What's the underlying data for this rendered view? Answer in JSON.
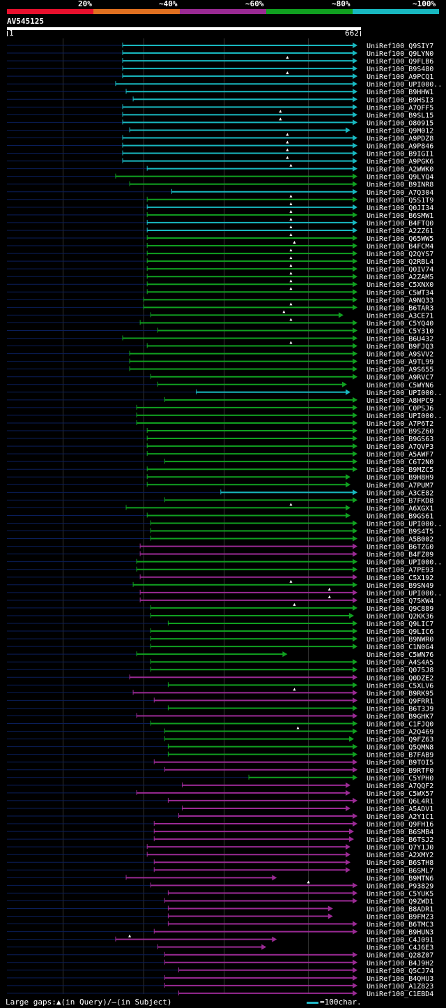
{
  "legend": {
    "labels": [
      "20%",
      "~40%",
      "~60%",
      "~80%",
      "~100%"
    ],
    "colors": [
      "#e8102d",
      "#e07020",
      "#9a2a94",
      "#10a020",
      "#18b8c0"
    ]
  },
  "query_id": "AV545125",
  "query_range": {
    "start": "1",
    "end": "662"
  },
  "footer": {
    "gaps_label": "Large gaps:",
    "query_gap": "(in Query)/",
    "subject_gap": "(in Subject)",
    "scale": "=100char."
  },
  "hits": [
    {
      "id": "UniRef100_Q9SIY7",
      "s": 0.33,
      "e": 1,
      "c": "cyan",
      "a": 1,
      "g": []
    },
    {
      "id": "UniRef100_Q9LYN0",
      "s": 0.33,
      "e": 1,
      "c": "cyan",
      "a": 1,
      "g": []
    },
    {
      "id": "UniRef100_Q9FLB6",
      "s": 0.33,
      "e": 1,
      "c": "cyan",
      "a": 1,
      "g": [
        0.8
      ]
    },
    {
      "id": "UniRef100_B9S480",
      "s": 0.33,
      "e": 1,
      "c": "cyan",
      "a": 1,
      "g": []
    },
    {
      "id": "UniRef100_A9PCQ1",
      "s": 0.33,
      "e": 1,
      "c": "cyan",
      "a": 1,
      "g": [
        0.8
      ]
    },
    {
      "id": "UniRef100_UPI000..",
      "s": 0.31,
      "e": 1,
      "c": "cyan",
      "a": 1,
      "g": []
    },
    {
      "id": "UniRef100_B9HHW1",
      "s": 0.34,
      "e": 1,
      "c": "cyan",
      "a": 1,
      "g": []
    },
    {
      "id": "UniRef100_B9HSI3",
      "s": 0.36,
      "e": 1,
      "c": "cyan",
      "a": 1,
      "g": []
    },
    {
      "id": "UniRef100_A7QFF5",
      "s": 0.33,
      "e": 1,
      "c": "cyan",
      "a": 1,
      "g": []
    },
    {
      "id": "UniRef100_B9SL15",
      "s": 0.33,
      "e": 1,
      "c": "cyan",
      "a": 1,
      "g": [
        0.78
      ]
    },
    {
      "id": "UniRef100_O80915",
      "s": 0.33,
      "e": 1,
      "c": "cyan",
      "a": 1,
      "g": [
        0.78
      ]
    },
    {
      "id": "UniRef100_Q9M012",
      "s": 0.35,
      "e": 0.98,
      "c": "cyan",
      "a": 1,
      "g": []
    },
    {
      "id": "UniRef100_A9PDZ8",
      "s": 0.33,
      "e": 1,
      "c": "cyan",
      "a": 1,
      "g": [
        0.8
      ]
    },
    {
      "id": "UniRef100_A9P846",
      "s": 0.33,
      "e": 1,
      "c": "cyan",
      "a": 1,
      "g": [
        0.8
      ]
    },
    {
      "id": "UniRef100_B9IGI1",
      "s": 0.33,
      "e": 1,
      "c": "cyan",
      "a": 1,
      "g": [
        0.8
      ]
    },
    {
      "id": "UniRef100_A9PGK6",
      "s": 0.33,
      "e": 1,
      "c": "cyan",
      "a": 1,
      "g": [
        0.8
      ]
    },
    {
      "id": "UniRef100_A2WWK0",
      "s": 0.4,
      "e": 1,
      "c": "cyan",
      "a": 1,
      "g": [
        0.81
      ]
    },
    {
      "id": "UniRef100_Q9LYQ4",
      "s": 0.31,
      "e": 1,
      "c": "green",
      "a": 1,
      "g": []
    },
    {
      "id": "UniRef100_B9INR8",
      "s": 0.35,
      "e": 1,
      "c": "green",
      "a": 1,
      "g": []
    },
    {
      "id": "UniRef100_A7Q304",
      "s": 0.47,
      "e": 1,
      "c": "cyan",
      "a": 1,
      "g": []
    },
    {
      "id": "UniRef100_Q5S1T9",
      "s": 0.4,
      "e": 1,
      "c": "green",
      "a": 1,
      "g": [
        0.81
      ]
    },
    {
      "id": "UniRef100_Q0JI34",
      "s": 0.4,
      "e": 1,
      "c": "cyan",
      "a": 1,
      "g": [
        0.81
      ]
    },
    {
      "id": "UniRef100_B6SMW1",
      "s": 0.4,
      "e": 1,
      "c": "green",
      "a": 1,
      "g": [
        0.81
      ]
    },
    {
      "id": "UniRef100_B4FTQ0",
      "s": 0.4,
      "e": 1,
      "c": "cyan",
      "a": 1,
      "g": [
        0.81
      ]
    },
    {
      "id": "UniRef100_A2ZZ61",
      "s": 0.4,
      "e": 1,
      "c": "cyan",
      "a": 1,
      "g": [
        0.81
      ]
    },
    {
      "id": "UniRef100_Q65WW5",
      "s": 0.4,
      "e": 1,
      "c": "green",
      "a": 1,
      "g": [
        0.81
      ]
    },
    {
      "id": "UniRef100_B4FCM4",
      "s": 0.4,
      "e": 1,
      "c": "green",
      "a": 1,
      "g": [
        0.82
      ]
    },
    {
      "id": "UniRef100_Q2QYS7",
      "s": 0.4,
      "e": 1,
      "c": "green",
      "a": 1,
      "g": [
        0.81
      ]
    },
    {
      "id": "UniRef100_Q2RBL4",
      "s": 0.4,
      "e": 1,
      "c": "green",
      "a": 1,
      "g": [
        0.81
      ]
    },
    {
      "id": "UniRef100_Q0IV74",
      "s": 0.4,
      "e": 1,
      "c": "green",
      "a": 1,
      "g": [
        0.81
      ]
    },
    {
      "id": "UniRef100_A2ZAM5",
      "s": 0.4,
      "e": 1,
      "c": "green",
      "a": 1,
      "g": [
        0.81
      ]
    },
    {
      "id": "UniRef100_C5XNX0",
      "s": 0.4,
      "e": 1,
      "c": "green",
      "a": 1,
      "g": [
        0.81
      ]
    },
    {
      "id": "UniRef100_C5WT34",
      "s": 0.4,
      "e": 1,
      "c": "green",
      "a": 1,
      "g": [
        0.81
      ]
    },
    {
      "id": "UniRef100_A9NQ33",
      "s": 0.39,
      "e": 1,
      "c": "green",
      "a": 1,
      "g": []
    },
    {
      "id": "UniRef100_B6TAR3",
      "s": 0.39,
      "e": 1,
      "c": "green",
      "a": 1,
      "g": [
        0.81
      ]
    },
    {
      "id": "UniRef100_A3CE71",
      "s": 0.41,
      "e": 0.96,
      "c": "green",
      "a": 1,
      "g": [
        0.79
      ]
    },
    {
      "id": "UniRef100_C5YQ40",
      "s": 0.38,
      "e": 1,
      "c": "green",
      "a": 1,
      "g": [
        0.81
      ]
    },
    {
      "id": "UniRef100_C5Y310",
      "s": 0.43,
      "e": 1,
      "c": "green",
      "a": 1,
      "g": []
    },
    {
      "id": "UniRef100_B6U432",
      "s": 0.33,
      "e": 1,
      "c": "green",
      "a": 1,
      "g": []
    },
    {
      "id": "UniRef100_B9FJQ3",
      "s": 0.4,
      "e": 1,
      "c": "green",
      "a": 1,
      "g": [
        0.81
      ]
    },
    {
      "id": "UniRef100_A9SVV2",
      "s": 0.35,
      "e": 1,
      "c": "green",
      "a": 1,
      "g": []
    },
    {
      "id": "UniRef100_A9TL99",
      "s": 0.35,
      "e": 1,
      "c": "green",
      "a": 1,
      "g": []
    },
    {
      "id": "UniRef100_A9S655",
      "s": 0.35,
      "e": 1,
      "c": "green",
      "a": 1,
      "g": []
    },
    {
      "id": "UniRef100_A9RVC7",
      "s": 0.41,
      "e": 1,
      "c": "green",
      "a": 1,
      "g": []
    },
    {
      "id": "UniRef100_C5WYN6",
      "s": 0.43,
      "e": 0.97,
      "c": "green",
      "a": 1,
      "g": []
    },
    {
      "id": "UniRef100_UPI000..",
      "s": 0.54,
      "e": 0.98,
      "c": "cyan",
      "a": 1,
      "g": []
    },
    {
      "id": "UniRef100_A8HPC9",
      "s": 0.45,
      "e": 1,
      "c": "green",
      "a": 1,
      "g": []
    },
    {
      "id": "UniRef100_C0PSJ6",
      "s": 0.37,
      "e": 1,
      "c": "green",
      "a": 1,
      "g": []
    },
    {
      "id": "UniRef100_UPI000..",
      "s": 0.37,
      "e": 1,
      "c": "green",
      "a": 1,
      "g": []
    },
    {
      "id": "UniRef100_A7P6T2",
      "s": 0.37,
      "e": 1,
      "c": "green",
      "a": 1,
      "g": []
    },
    {
      "id": "UniRef100_B9SZ60",
      "s": 0.4,
      "e": 1,
      "c": "green",
      "a": 1,
      "g": []
    },
    {
      "id": "UniRef100_B9GS63",
      "s": 0.4,
      "e": 1,
      "c": "green",
      "a": 1,
      "g": []
    },
    {
      "id": "UniRef100_A7QVP3",
      "s": 0.4,
      "e": 1,
      "c": "green",
      "a": 1,
      "g": []
    },
    {
      "id": "UniRef100_A5AWF7",
      "s": 0.4,
      "e": 1,
      "c": "green",
      "a": 1,
      "g": []
    },
    {
      "id": "UniRef100_C6T2N0",
      "s": 0.45,
      "e": 1,
      "c": "green",
      "a": 1,
      "g": []
    },
    {
      "id": "UniRef100_B9MZC5",
      "s": 0.4,
      "e": 1,
      "c": "green",
      "a": 1,
      "g": []
    },
    {
      "id": "UniRef100_B9H8H9",
      "s": 0.4,
      "e": 0.98,
      "c": "green",
      "a": 1,
      "g": []
    },
    {
      "id": "UniRef100_A7PUM7",
      "s": 0.4,
      "e": 0.98,
      "c": "green",
      "a": 1,
      "g": []
    },
    {
      "id": "UniRef100_A3CE82",
      "s": 0.61,
      "e": 1,
      "c": "cyan",
      "a": 1,
      "g": []
    },
    {
      "id": "UniRef100_B7FKD8",
      "s": 0.45,
      "e": 1,
      "c": "green",
      "a": 1,
      "g": []
    },
    {
      "id": "UniRef100_A6XGX1",
      "s": 0.34,
      "e": 0.98,
      "c": "green",
      "a": 1,
      "g": [
        0.81
      ]
    },
    {
      "id": "UniRef100_B9GS61",
      "s": 0.4,
      "e": 0.98,
      "c": "green",
      "a": 1,
      "g": []
    },
    {
      "id": "UniRef100_UPI000..",
      "s": 0.41,
      "e": 1,
      "c": "green",
      "a": 1,
      "g": []
    },
    {
      "id": "UniRef100_B9S4T5",
      "s": 0.41,
      "e": 1,
      "c": "green",
      "a": 1,
      "g": []
    },
    {
      "id": "UniRef100_A5B002",
      "s": 0.41,
      "e": 1,
      "c": "green",
      "a": 1,
      "g": []
    },
    {
      "id": "UniRef100_B6TZG0",
      "s": 0.38,
      "e": 1,
      "c": "magenta",
      "a": 1,
      "g": []
    },
    {
      "id": "UniRef100_B4FZ09",
      "s": 0.38,
      "e": 1,
      "c": "magenta",
      "a": 1,
      "g": []
    },
    {
      "id": "UniRef100_UPI000..",
      "s": 0.37,
      "e": 1,
      "c": "green",
      "a": 1,
      "g": []
    },
    {
      "id": "UniRef100_A7PE93",
      "s": 0.37,
      "e": 1,
      "c": "green",
      "a": 1,
      "g": []
    },
    {
      "id": "UniRef100_C5X192",
      "s": 0.38,
      "e": 1,
      "c": "magenta",
      "a": 1,
      "g": []
    },
    {
      "id": "UniRef100_B9SN49",
      "s": 0.36,
      "e": 1,
      "c": "green",
      "a": 1,
      "g": [
        0.81
      ]
    },
    {
      "id": "UniRef100_UPI000..",
      "s": 0.38,
      "e": 1,
      "c": "magenta",
      "a": 1,
      "g": [
        0.92
      ]
    },
    {
      "id": "UniRef100_Q75KW4",
      "s": 0.38,
      "e": 1,
      "c": "magenta",
      "a": 1,
      "g": [
        0.92
      ]
    },
    {
      "id": "UniRef100_Q9C889",
      "s": 0.41,
      "e": 1,
      "c": "green",
      "a": 1,
      "g": [
        0.82
      ]
    },
    {
      "id": "UniRef100_Q2KK36",
      "s": 0.41,
      "e": 0.99,
      "c": "green",
      "a": 1,
      "g": []
    },
    {
      "id": "UniRef100_Q9LIC7",
      "s": 0.46,
      "e": 1,
      "c": "green",
      "a": 1,
      "g": []
    },
    {
      "id": "UniRef100_Q9LIC6",
      "s": 0.41,
      "e": 1,
      "c": "green",
      "a": 1,
      "g": []
    },
    {
      "id": "UniRef100_B9NWR0",
      "s": 0.41,
      "e": 1,
      "c": "green",
      "a": 1,
      "g": []
    },
    {
      "id": "UniRef100_C1N0G4",
      "s": 0.41,
      "e": 1,
      "c": "green",
      "a": 1,
      "g": []
    },
    {
      "id": "UniRef100_C5WN76",
      "s": 0.37,
      "e": 0.8,
      "c": "green",
      "a": 1,
      "g": []
    },
    {
      "id": "UniRef100_A4S4A5",
      "s": 0.41,
      "e": 1,
      "c": "green",
      "a": 1,
      "g": []
    },
    {
      "id": "UniRef100_Q075J8",
      "s": 0.41,
      "e": 1,
      "c": "green",
      "a": 1,
      "g": []
    },
    {
      "id": "UniRef100_Q0DZE2",
      "s": 0.35,
      "e": 1,
      "c": "magenta",
      "a": 1,
      "g": []
    },
    {
      "id": "UniRef100_C5XLV6",
      "s": 0.46,
      "e": 1,
      "c": "green",
      "a": 1,
      "g": []
    },
    {
      "id": "UniRef100_B9RK95",
      "s": 0.36,
      "e": 1,
      "c": "magenta",
      "a": 1,
      "g": [
        0.82
      ]
    },
    {
      "id": "UniRef100_Q9FRR1",
      "s": 0.42,
      "e": 1,
      "c": "magenta",
      "a": 1,
      "g": []
    },
    {
      "id": "UniRef100_B6T3J9",
      "s": 0.46,
      "e": 1,
      "c": "green",
      "a": 1,
      "g": []
    },
    {
      "id": "UniRef100_B9GHK7",
      "s": 0.37,
      "e": 1,
      "c": "magenta",
      "a": 1,
      "g": []
    },
    {
      "id": "UniRef100_C1FJQ0",
      "s": 0.41,
      "e": 1,
      "c": "green",
      "a": 1,
      "g": []
    },
    {
      "id": "UniRef100_A2Q469",
      "s": 0.45,
      "e": 1,
      "c": "green",
      "a": 1,
      "g": [
        0.83
      ]
    },
    {
      "id": "UniRef100_Q9FZ63",
      "s": 0.45,
      "e": 0.99,
      "c": "green",
      "a": 1,
      "g": []
    },
    {
      "id": "UniRef100_Q5QMN8",
      "s": 0.46,
      "e": 1,
      "c": "green",
      "a": 1,
      "g": []
    },
    {
      "id": "UniRef100_B7FAB9",
      "s": 0.46,
      "e": 1,
      "c": "green",
      "a": 1,
      "g": []
    },
    {
      "id": "UniRef100_B9TOI5",
      "s": 0.42,
      "e": 1,
      "c": "magenta",
      "a": 1,
      "g": []
    },
    {
      "id": "UniRef100_B9RTF0",
      "s": 0.45,
      "e": 1,
      "c": "magenta",
      "a": 1,
      "g": []
    },
    {
      "id": "UniRef100_C5YPH0",
      "s": 0.69,
      "e": 1,
      "c": "green",
      "a": 1,
      "g": []
    },
    {
      "id": "UniRef100_A7QQF2",
      "s": 0.5,
      "e": 0.98,
      "c": "magenta",
      "a": 1,
      "g": []
    },
    {
      "id": "UniRef100_C5WX57",
      "s": 0.37,
      "e": 0.98,
      "c": "magenta",
      "a": 1,
      "g": []
    },
    {
      "id": "UniRef100_Q6L4R1",
      "s": 0.46,
      "e": 1,
      "c": "magenta",
      "a": 1,
      "g": []
    },
    {
      "id": "UniRef100_A5ADV1",
      "s": 0.5,
      "e": 0.98,
      "c": "magenta",
      "a": 1,
      "g": []
    },
    {
      "id": "UniRef100_A2Y1C1",
      "s": 0.49,
      "e": 1,
      "c": "magenta",
      "a": 1,
      "g": []
    },
    {
      "id": "UniRef100_Q9FH16",
      "s": 0.42,
      "e": 1,
      "c": "magenta",
      "a": 1,
      "g": []
    },
    {
      "id": "UniRef100_B6SMB4",
      "s": 0.42,
      "e": 0.99,
      "c": "magenta",
      "a": 1,
      "g": []
    },
    {
      "id": "UniRef100_B6TSJ2",
      "s": 0.42,
      "e": 0.99,
      "c": "magenta",
      "a": 1,
      "g": []
    },
    {
      "id": "UniRef100_Q7Y1J0",
      "s": 0.4,
      "e": 0.98,
      "c": "magenta",
      "a": 1,
      "g": []
    },
    {
      "id": "UniRef100_A2XMY2",
      "s": 0.4,
      "e": 0.98,
      "c": "magenta",
      "a": 1,
      "g": []
    },
    {
      "id": "UniRef100_B6STH8",
      "s": 0.42,
      "e": 0.98,
      "c": "magenta",
      "a": 1,
      "g": []
    },
    {
      "id": "UniRef100_B6SML7",
      "s": 0.42,
      "e": 0.98,
      "c": "magenta",
      "a": 1,
      "g": []
    },
    {
      "id": "UniRef100_B9MTN6",
      "s": 0.34,
      "e": 0.77,
      "c": "magenta",
      "a": 1,
      "g": []
    },
    {
      "id": "UniRef100_P93829",
      "s": 0.41,
      "e": 1,
      "c": "magenta",
      "a": 1,
      "g": [
        0.86
      ]
    },
    {
      "id": "UniRef100_C5YUK5",
      "s": 0.46,
      "e": 1,
      "c": "magenta",
      "a": 1,
      "g": []
    },
    {
      "id": "UniRef100_Q9ZWD1",
      "s": 0.45,
      "e": 1,
      "c": "magenta",
      "a": 1,
      "g": []
    },
    {
      "id": "UniRef100_B8ADR1",
      "s": 0.46,
      "e": 0.93,
      "c": "magenta",
      "a": 1,
      "g": []
    },
    {
      "id": "UniRef100_B9FMZ3",
      "s": 0.46,
      "e": 0.93,
      "c": "magenta",
      "a": 1,
      "g": []
    },
    {
      "id": "UniRef100_B6TMC3",
      "s": 0.46,
      "e": 1,
      "c": "magenta",
      "a": 1,
      "g": []
    },
    {
      "id": "UniRef100_B9HUN3",
      "s": 0.42,
      "e": 1,
      "c": "magenta",
      "a": 1,
      "g": []
    },
    {
      "id": "UniRef100_C4J091",
      "s": 0.31,
      "e": 0.77,
      "c": "magenta",
      "a": 1,
      "g": [
        0.35
      ]
    },
    {
      "id": "UniRef100_C4J6E3",
      "s": 0.43,
      "e": 0.74,
      "c": "magenta",
      "a": 1,
      "g": []
    },
    {
      "id": "UniRef100_Q28Z07",
      "s": 0.45,
      "e": 1,
      "c": "magenta",
      "a": 1,
      "g": []
    },
    {
      "id": "UniRef100_B4J9H2",
      "s": 0.45,
      "e": 1,
      "c": "magenta",
      "a": 1,
      "g": []
    },
    {
      "id": "UniRef100_Q5CJ74",
      "s": 0.49,
      "e": 1,
      "c": "magenta",
      "a": 1,
      "g": []
    },
    {
      "id": "UniRef100_B4QHU3",
      "s": 0.45,
      "e": 1,
      "c": "magenta",
      "a": 1,
      "g": []
    },
    {
      "id": "UniRef100_A1Z823",
      "s": 0.45,
      "e": 1,
      "c": "magenta",
      "a": 1,
      "g": []
    },
    {
      "id": "UniRef100_C1EBD4",
      "s": 0.49,
      "e": 1,
      "c": "magenta",
      "a": 1,
      "g": []
    }
  ]
}
